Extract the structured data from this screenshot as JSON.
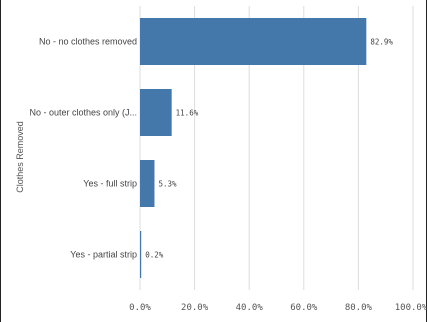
{
  "chart_data": {
    "type": "bar",
    "orientation": "horizontal",
    "title": "",
    "xlabel": "",
    "ylabel": "Clothes Removed",
    "categories": [
      "No - no clothes removed",
      "No - outer clothes only (J...",
      "Yes - full strip",
      "Yes - partial strip"
    ],
    "values": [
      82.9,
      11.6,
      5.3,
      0.2
    ],
    "data_labels": [
      "82.9%",
      "11.6%",
      "5.3%",
      "0.2%"
    ],
    "xlim": [
      0,
      100
    ],
    "x_ticks": [
      0,
      20,
      40,
      60,
      80,
      100
    ],
    "x_tick_labels": [
      "0.0%",
      "20.0%",
      "40.0%",
      "60.0%",
      "80.0%",
      "100.0%"
    ],
    "grid": true,
    "bar_color": "#4477aa",
    "grid_color": "#dddddd"
  }
}
